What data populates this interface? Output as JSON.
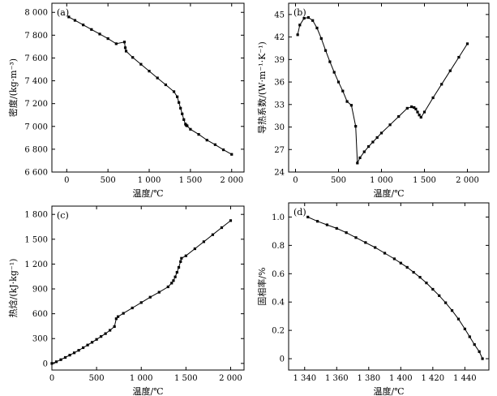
{
  "chart_data": [
    {
      "id": "a",
      "type": "line",
      "tag": "(a)",
      "xlabel": "温度/℃",
      "ylabel": "密度/(kg·m⁻³)",
      "xlim": [
        -180,
        2150
      ],
      "ylim": [
        6600,
        8080
      ],
      "xticks": [
        0,
        500,
        1000,
        1500,
        2000
      ],
      "xticklabels": [
        "0",
        "500",
        "1 000",
        "1 500",
        "2 000"
      ],
      "yticks": [
        6600,
        6800,
        7000,
        7200,
        7400,
        7600,
        7800,
        8000
      ],
      "yticklabels": [
        "6 600",
        "6 800",
        "7 000",
        "7 200",
        "7 400",
        "7 600",
        "7 800",
        "8 000"
      ],
      "marker": "square",
      "series": [
        {
          "x": [
            25,
            100,
            200,
            300,
            400,
            500,
            600,
            700,
            710,
            720,
            800,
            900,
            1000,
            1100,
            1200,
            1300,
            1340,
            1360,
            1380,
            1400,
            1420,
            1440,
            1450,
            1460,
            1500,
            1600,
            1700,
            1800,
            1900,
            2000
          ],
          "y": [
            7960,
            7930,
            7890,
            7850,
            7810,
            7770,
            7725,
            7740,
            7690,
            7660,
            7605,
            7545,
            7485,
            7425,
            7365,
            7305,
            7260,
            7210,
            7160,
            7110,
            7060,
            7020,
            7010,
            7005,
            6975,
            6930,
            6880,
            6840,
            6795,
            6755
          ]
        }
      ]
    },
    {
      "id": "b",
      "type": "line",
      "tag": "(b)",
      "xlabel": "温度/℃",
      "ylabel": "导热系数/(W·m⁻¹·K⁻¹)",
      "xlim": [
        -80,
        2250
      ],
      "ylim": [
        24,
        46.5
      ],
      "xticks": [
        0,
        500,
        1000,
        1500,
        2000
      ],
      "xticklabels": [
        "0",
        "500",
        "1 000",
        "1 500",
        "2 000"
      ],
      "yticks": [
        24,
        27,
        30,
        33,
        36,
        39,
        42,
        45
      ],
      "yticklabels": [
        "24",
        "27",
        "30",
        "33",
        "36",
        "39",
        "42",
        "45"
      ],
      "marker": "square",
      "series": [
        {
          "x": [
            25,
            50,
            100,
            150,
            200,
            250,
            300,
            350,
            400,
            450,
            500,
            550,
            600,
            650,
            700,
            720,
            750,
            800,
            850,
            900,
            950,
            1000,
            1100,
            1200,
            1300,
            1350,
            1380,
            1400,
            1420,
            1440,
            1460,
            1500,
            1600,
            1700,
            1800,
            1900,
            2000
          ],
          "y": [
            42.3,
            43.6,
            44.5,
            44.6,
            44.2,
            43.2,
            41.8,
            40.2,
            38.7,
            37.3,
            36,
            34.8,
            33.4,
            32.9,
            30.1,
            25.2,
            25.9,
            26.7,
            27.4,
            28,
            28.6,
            29.2,
            30.3,
            31.4,
            32.5,
            32.7,
            32.6,
            32.4,
            32,
            31.6,
            31.3,
            32,
            33.9,
            35.7,
            37.5,
            39.3,
            41.1
          ]
        }
      ]
    },
    {
      "id": "c",
      "type": "line",
      "tag": "(c)",
      "xlabel": "温度/℃",
      "ylabel": "热焓/(kJ·kg⁻¹)",
      "xlim": [
        0,
        2150
      ],
      "ylim": [
        -80,
        1900
      ],
      "xticks": [
        0,
        500,
        1000,
        1500,
        2000
      ],
      "xticklabels": [
        "0",
        "500",
        "1 000",
        "1 500",
        "2 000"
      ],
      "yticks": [
        0,
        300,
        600,
        900,
        1200,
        1500,
        1800
      ],
      "yticklabels": [
        "0",
        "300",
        "600",
        "900",
        "1 200",
        "1 500",
        "1 800"
      ],
      "marker": "square",
      "series": [
        {
          "x": [
            0,
            50,
            100,
            150,
            200,
            250,
            300,
            350,
            400,
            450,
            500,
            550,
            600,
            650,
            700,
            720,
            740,
            800,
            900,
            1000,
            1100,
            1200,
            1300,
            1340,
            1360,
            1380,
            1400,
            1420,
            1440,
            1450,
            1500,
            1600,
            1700,
            1800,
            1900,
            2000
          ],
          "y": [
            0,
            20,
            45,
            72,
            100,
            128,
            158,
            190,
            222,
            255,
            290,
            325,
            360,
            400,
            445,
            540,
            565,
            605,
            670,
            735,
            800,
            860,
            925,
            970,
            1000,
            1045,
            1100,
            1160,
            1230,
            1270,
            1300,
            1385,
            1470,
            1555,
            1640,
            1725
          ]
        }
      ]
    },
    {
      "id": "d",
      "type": "line",
      "tag": "(d)",
      "xlabel": "温度/℃",
      "ylabel": "固相率/%",
      "xlim": [
        1330,
        1455
      ],
      "ylim": [
        -0.08,
        1.1
      ],
      "xticks": [
        1340,
        1360,
        1380,
        1400,
        1420,
        1440
      ],
      "xticklabels": [
        "1 340",
        "1 360",
        "1 380",
        "1 400",
        "1 420",
        "1 440"
      ],
      "yticks": [
        0,
        0.2,
        0.4,
        0.6,
        0.8,
        1.0
      ],
      "yticklabels": [
        "0",
        "0.2",
        "0.4",
        "0.6",
        "0.8",
        "1.0"
      ],
      "marker": "square",
      "series": [
        {
          "x": [
            1342,
            1348,
            1354,
            1360,
            1366,
            1372,
            1378,
            1384,
            1390,
            1396,
            1400,
            1404,
            1408,
            1412,
            1416,
            1420,
            1424,
            1428,
            1432,
            1436,
            1440,
            1443,
            1446,
            1449,
            1451
          ],
          "y": [
            1.0,
            0.97,
            0.945,
            0.92,
            0.89,
            0.855,
            0.82,
            0.785,
            0.745,
            0.705,
            0.675,
            0.645,
            0.61,
            0.575,
            0.535,
            0.49,
            0.445,
            0.395,
            0.34,
            0.28,
            0.21,
            0.155,
            0.1,
            0.05,
            0.0
          ]
        }
      ]
    }
  ]
}
